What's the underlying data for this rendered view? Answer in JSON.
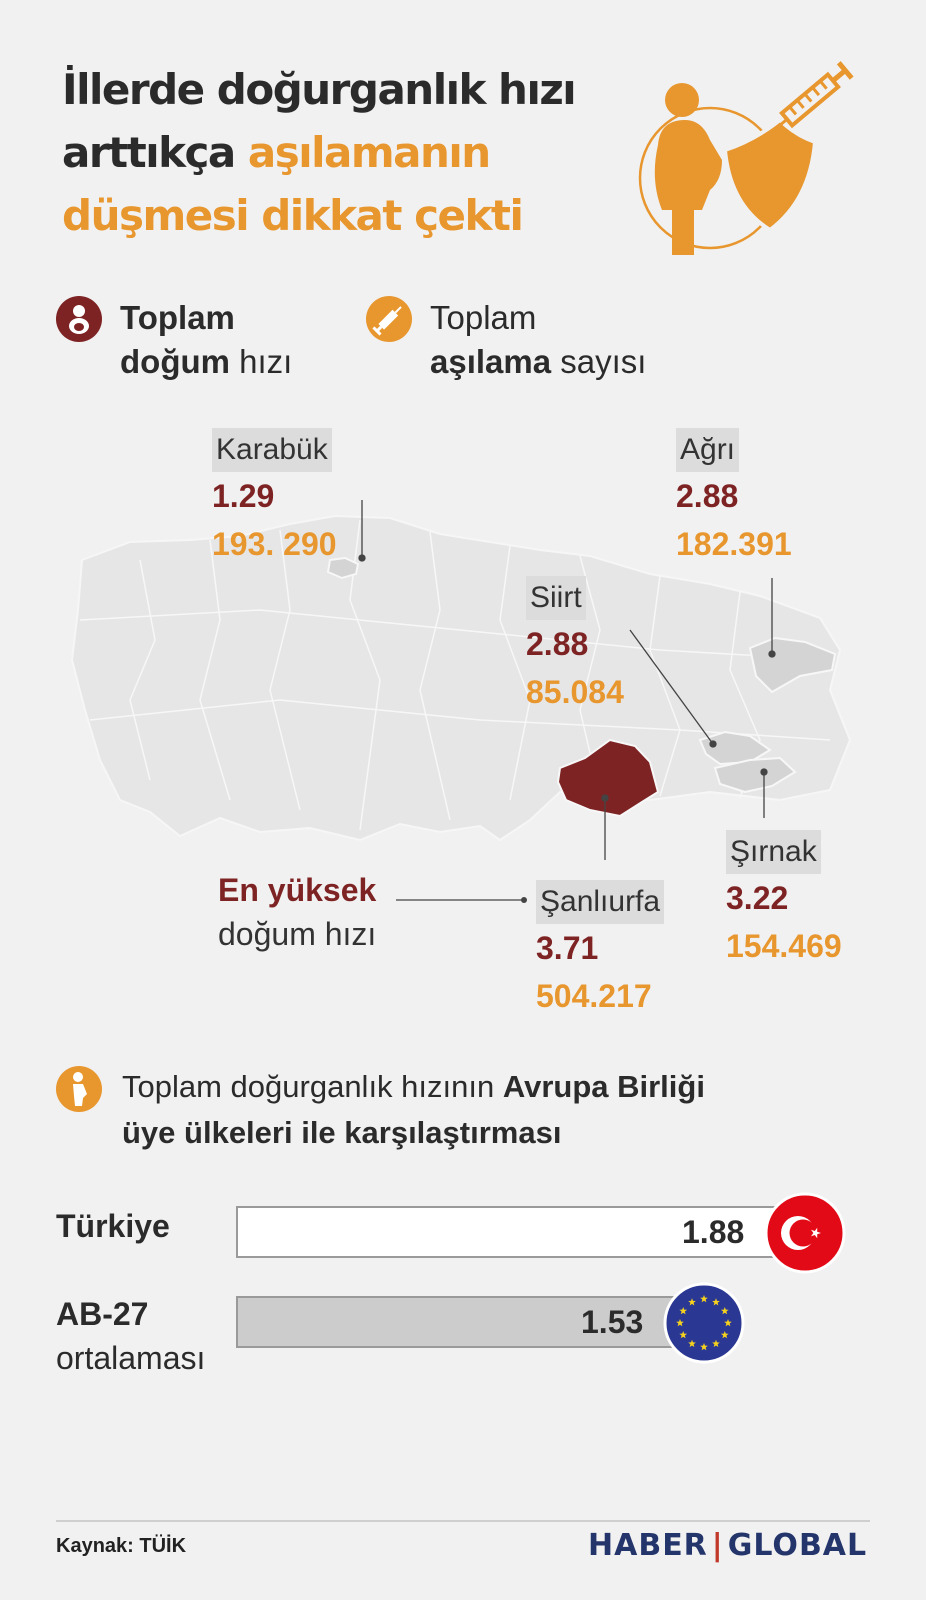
{
  "title": {
    "line1": "İllerde doğurganlık hızı",
    "line2_dark": "arttıkça ",
    "line2_hl": "aşılamanın",
    "line3": "düşmesi dikkat çekti"
  },
  "legend": {
    "birth": {
      "line1": "Toplam",
      "line2_bold": "doğum",
      "line2_rest": " hızı"
    },
    "vaccine": {
      "line1": "Toplam",
      "line2_bold": "aşılama",
      "line2_rest": " sayısı"
    }
  },
  "provinces": [
    {
      "name": "Karabük",
      "birth_rate": "1.29",
      "vaccinations": "193. 290"
    },
    {
      "name": "Ağrı",
      "birth_rate": "2.88",
      "vaccinations": "182.391"
    },
    {
      "name": "Siirt",
      "birth_rate": "2.88",
      "vaccinations": "85.084"
    },
    {
      "name": "Şırnak",
      "birth_rate": "3.22",
      "vaccinations": "154.469"
    },
    {
      "name": "Şanlıurfa",
      "birth_rate": "3.71",
      "vaccinations": "504.217"
    }
  ],
  "highlight_note": {
    "bold": "En yüksek",
    "rest": "doğum hızı"
  },
  "comparison": {
    "heading_pre": "Toplam doğurganlık hızının ",
    "heading_bold1": "Avrupa Birliği",
    "heading_bold2": "üye ülkeleri ile karşılaştırması",
    "rows": [
      {
        "label_bold": "Türkiye",
        "label_rest": "",
        "value": 1.88,
        "value_text": "1.88",
        "fill": "#ffffff"
      },
      {
        "label_bold": "AB-27",
        "label_rest": "ortalaması",
        "value": 1.53,
        "value_text": "1.53",
        "fill": "#cccccc"
      }
    ]
  },
  "footer": {
    "source": "Kaynak: TÜİK",
    "logo_left": "HABER",
    "logo_sep": "|",
    "logo_right": "GLOBAL"
  },
  "colors": {
    "accent": "#e8962e",
    "birth": "#7e2323",
    "logo": "#24356b",
    "flag_red": "#e30a17",
    "eu_blue": "#2a3893"
  },
  "icons": [
    "mother-vaccine-illustration",
    "baby-icon",
    "syringe-icon",
    "pregnant-woman-icon",
    "turkey-flag-icon",
    "eu-flag-icon"
  ]
}
